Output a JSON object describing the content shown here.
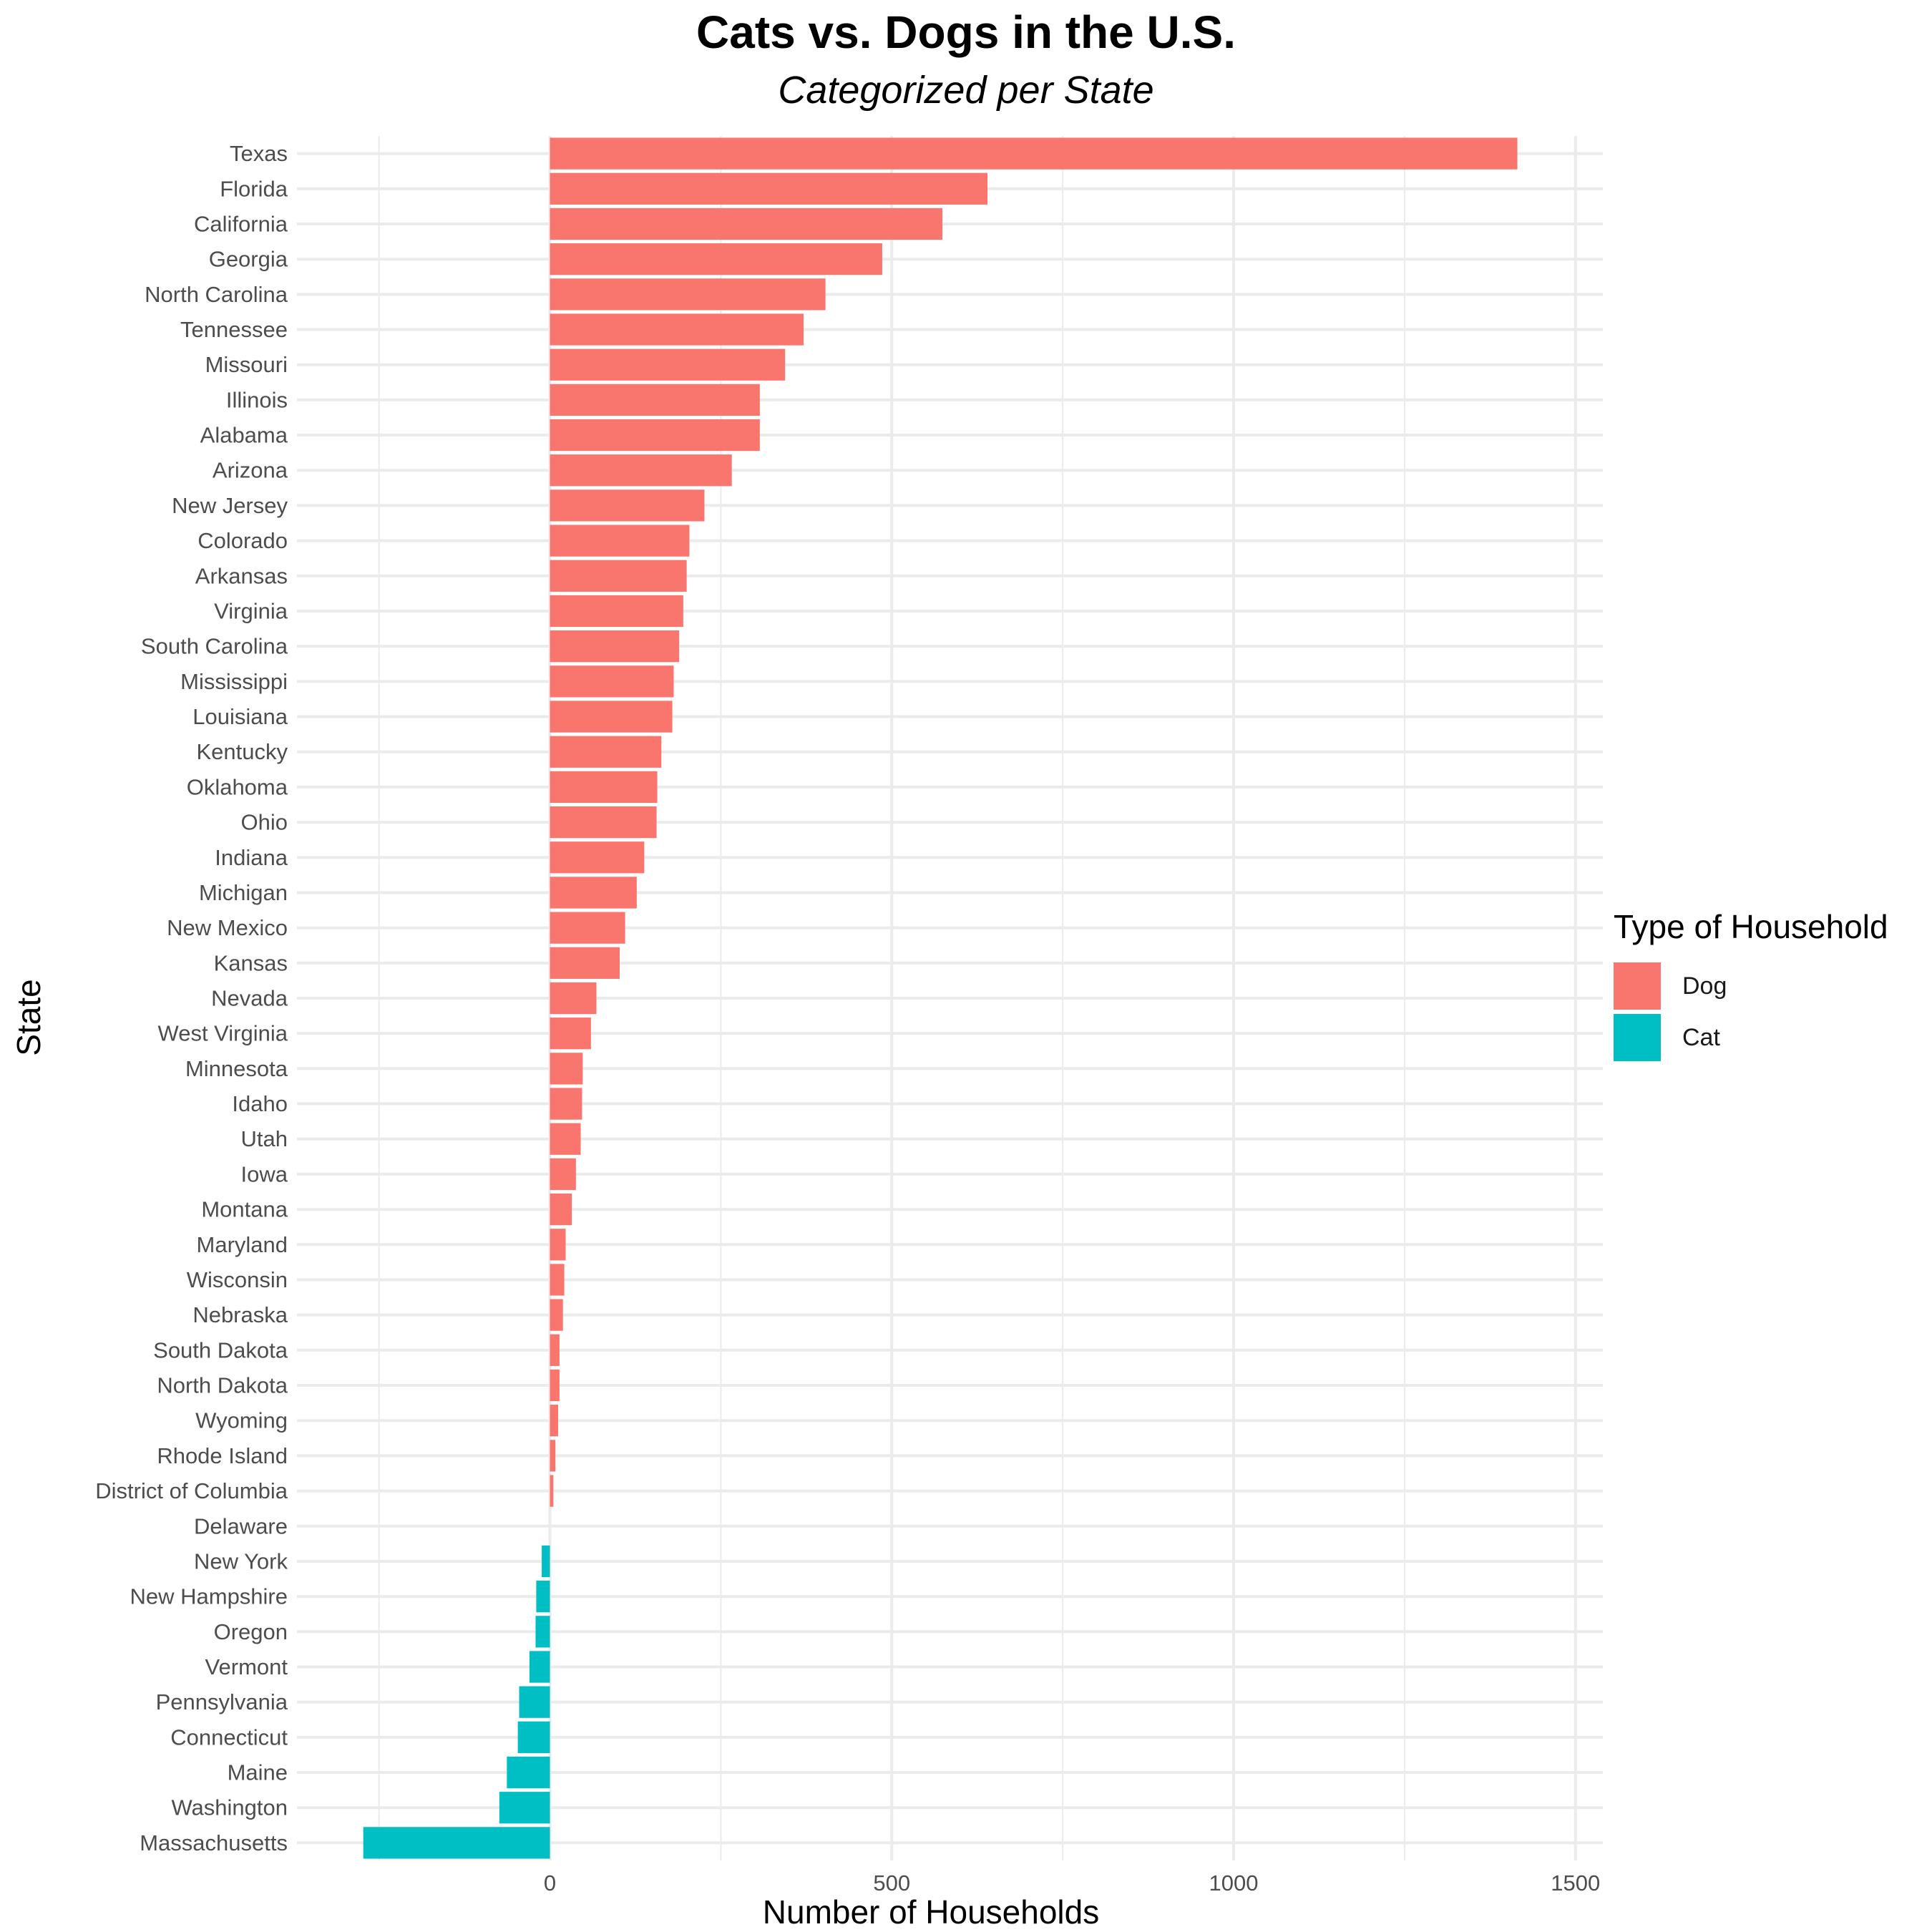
{
  "chart_data": {
    "type": "bar",
    "orientation": "horizontal",
    "title": "Cats vs. Dogs in the U.S.",
    "subtitle": "Categorized per State",
    "xlabel": "Number of Households",
    "ylabel": "State",
    "xlim": [
      -370,
      1540
    ],
    "xticks": [
      0,
      500,
      1000,
      1500
    ],
    "grid": true,
    "legend_title": "Type of Household",
    "legend_placement": "right",
    "series": [
      {
        "name": "Dog",
        "color": "#F8766D"
      },
      {
        "name": "Cat",
        "color": "#00BFC4"
      }
    ],
    "bars": [
      {
        "category": "Texas",
        "value": 1415,
        "series": "Dog"
      },
      {
        "category": "Florida",
        "value": 640,
        "series": "Dog"
      },
      {
        "category": "California",
        "value": 574,
        "series": "Dog"
      },
      {
        "category": "Georgia",
        "value": 486,
        "series": "Dog"
      },
      {
        "category": "North Carolina",
        "value": 403,
        "series": "Dog"
      },
      {
        "category": "Tennessee",
        "value": 371,
        "series": "Dog"
      },
      {
        "category": "Missouri",
        "value": 344,
        "series": "Dog"
      },
      {
        "category": "Illinois",
        "value": 307,
        "series": "Dog"
      },
      {
        "category": "Alabama",
        "value": 307,
        "series": "Dog"
      },
      {
        "category": "Arizona",
        "value": 266,
        "series": "Dog"
      },
      {
        "category": "New Jersey",
        "value": 226,
        "series": "Dog"
      },
      {
        "category": "Colorado",
        "value": 204,
        "series": "Dog"
      },
      {
        "category": "Arkansas",
        "value": 200,
        "series": "Dog"
      },
      {
        "category": "Virginia",
        "value": 195,
        "series": "Dog"
      },
      {
        "category": "South Carolina",
        "value": 189,
        "series": "Dog"
      },
      {
        "category": "Mississippi",
        "value": 181,
        "series": "Dog"
      },
      {
        "category": "Louisiana",
        "value": 179,
        "series": "Dog"
      },
      {
        "category": "Kentucky",
        "value": 163,
        "series": "Dog"
      },
      {
        "category": "Oklahoma",
        "value": 157,
        "series": "Dog"
      },
      {
        "category": "Ohio",
        "value": 156,
        "series": "Dog"
      },
      {
        "category": "Indiana",
        "value": 138,
        "series": "Dog"
      },
      {
        "category": "Michigan",
        "value": 127,
        "series": "Dog"
      },
      {
        "category": "New Mexico",
        "value": 110,
        "series": "Dog"
      },
      {
        "category": "Kansas",
        "value": 102,
        "series": "Dog"
      },
      {
        "category": "Nevada",
        "value": 68,
        "series": "Dog"
      },
      {
        "category": "West Virginia",
        "value": 60,
        "series": "Dog"
      },
      {
        "category": "Minnesota",
        "value": 48,
        "series": "Dog"
      },
      {
        "category": "Idaho",
        "value": 47,
        "series": "Dog"
      },
      {
        "category": "Utah",
        "value": 45,
        "series": "Dog"
      },
      {
        "category": "Iowa",
        "value": 38,
        "series": "Dog"
      },
      {
        "category": "Montana",
        "value": 32,
        "series": "Dog"
      },
      {
        "category": "Maryland",
        "value": 23,
        "series": "Dog"
      },
      {
        "category": "Wisconsin",
        "value": 21,
        "series": "Dog"
      },
      {
        "category": "Nebraska",
        "value": 19,
        "series": "Dog"
      },
      {
        "category": "South Dakota",
        "value": 14,
        "series": "Dog"
      },
      {
        "category": "North Dakota",
        "value": 14,
        "series": "Dog"
      },
      {
        "category": "Wyoming",
        "value": 12,
        "series": "Dog"
      },
      {
        "category": "Rhode Island",
        "value": 8,
        "series": "Dog"
      },
      {
        "category": "District of Columbia",
        "value": 5,
        "series": "Dog"
      },
      {
        "category": "Delaware",
        "value": 0,
        "series": "Dog"
      },
      {
        "category": "New York",
        "value": -12,
        "series": "Cat"
      },
      {
        "category": "New Hampshire",
        "value": -20,
        "series": "Cat"
      },
      {
        "category": "Oregon",
        "value": -21,
        "series": "Cat"
      },
      {
        "category": "Vermont",
        "value": -30,
        "series": "Cat"
      },
      {
        "category": "Pennsylvania",
        "value": -45,
        "series": "Cat"
      },
      {
        "category": "Connecticut",
        "value": -47,
        "series": "Cat"
      },
      {
        "category": "Maine",
        "value": -63,
        "series": "Cat"
      },
      {
        "category": "Washington",
        "value": -74,
        "series": "Cat"
      },
      {
        "category": "Massachusetts",
        "value": -273,
        "series": "Cat"
      }
    ]
  }
}
